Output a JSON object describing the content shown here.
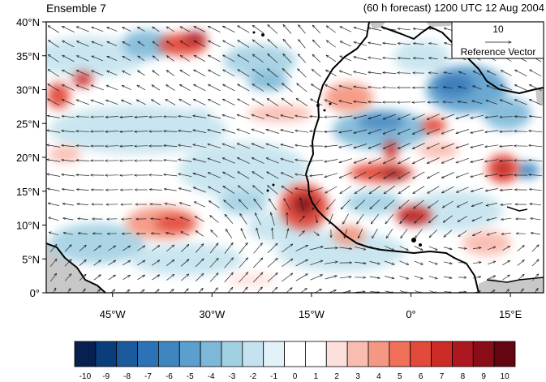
{
  "titles": {
    "left": "Ensemble 7",
    "right": "(60 h forecast) 1200 UTC 12 Aug 2004"
  },
  "map": {
    "projection": "cylindrical-equidistant",
    "lon_range": [
      -55,
      20
    ],
    "lat_range": [
      0,
      40
    ],
    "lat_labels": [
      {
        "value": 40,
        "text": "40°N"
      },
      {
        "value": 35,
        "text": "35°N"
      },
      {
        "value": 30,
        "text": "30°N"
      },
      {
        "value": 25,
        "text": "25°N"
      },
      {
        "value": 20,
        "text": "20°N"
      },
      {
        "value": 15,
        "text": "15°N"
      },
      {
        "value": 10,
        "text": "10°N"
      },
      {
        "value": 5,
        "text": "5°N"
      },
      {
        "value": 0,
        "text": "0°"
      }
    ],
    "lon_labels": [
      {
        "value": -45,
        "text": "45°W"
      },
      {
        "value": -30,
        "text": "30°W"
      },
      {
        "value": -15,
        "text": "15°W"
      },
      {
        "value": 0,
        "text": "0°"
      },
      {
        "value": 15,
        "text": "15°E"
      }
    ],
    "fill_mode": "shaded-anomaly",
    "overlay": "wind-vectors",
    "coastline_color": "#000000",
    "missing_color": "#c8c8c8"
  },
  "reference_vector": {
    "magnitude": "10",
    "label": "Reference Vector"
  },
  "colorbar": {
    "labels": [
      "-10",
      "-9",
      "-8",
      "-7",
      "-6",
      "-5",
      "-4",
      "-3",
      "-2",
      "-1",
      "0",
      "1",
      "2",
      "3",
      "4",
      "5",
      "6",
      "7",
      "8",
      "9",
      "10"
    ],
    "colors": [
      "#08204f",
      "#0a3d7c",
      "#1b5a9c",
      "#2c72b6",
      "#3f86c1",
      "#5a9fcd",
      "#7db8d8",
      "#a2d0e3",
      "#c4e3ee",
      "#e3f2f8",
      "#ffffff",
      "#ffffff",
      "#fde0dc",
      "#f9bcb0",
      "#f59883",
      "#f0705a",
      "#e44a3a",
      "#cc2a25",
      "#ad1820",
      "#8a0d18",
      "#650511"
    ]
  }
}
